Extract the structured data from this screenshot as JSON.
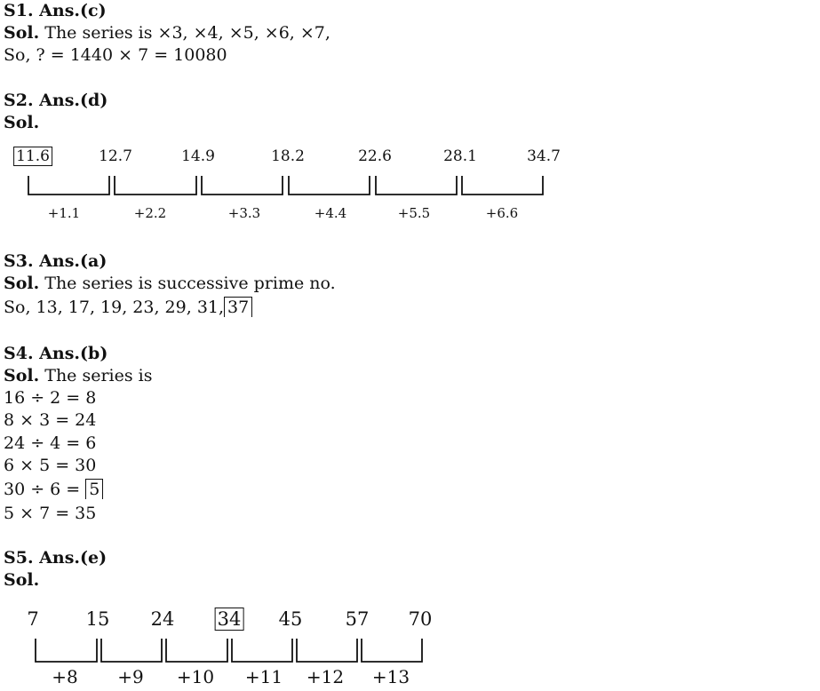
{
  "s1": {
    "heading": "S1. Ans.(c)",
    "sol_label": "Sol.",
    "sol_text": " The series is ×3, ×4, ×5, ×6, ×7,",
    "line2": "So, ? = 1440 × 7 = 10080"
  },
  "s2": {
    "heading": "S2. Ans.(d)",
    "sol_label": "Sol.",
    "numbers": [
      "11.6",
      "12.7",
      "14.9",
      "18.2",
      "22.6",
      "28.1",
      "34.7"
    ],
    "boxed_index": 0,
    "differences": [
      "+1.1",
      "+2.2",
      "+3.3",
      "+4.4",
      "+5.5",
      "+6.6"
    ]
  },
  "s3": {
    "heading": "S3. Ans.(a)",
    "sol_label": "Sol.",
    "sol_text": " The series is successive prime no.",
    "line2_prefix": "So, 13, 17, 19, 23, 29, 31,",
    "line2_answer": "37"
  },
  "s4": {
    "heading": "S4. Ans.(b)",
    "sol_label": "Sol.",
    "sol_text": " The series is",
    "lines": [
      "16 ÷ 2 = 8",
      "8 × 3 = 24",
      "24 ÷ 4 = 6",
      "6 × 5 = 30"
    ],
    "line5_prefix": "30 ÷ 6 =",
    "line5_answer": "5",
    "line6": "5 × 7 = 35"
  },
  "s5": {
    "heading": "S5. Ans.(e)",
    "sol_label": "Sol.",
    "numbers": [
      "7",
      "15",
      "24",
      "34",
      "45",
      "57",
      "70"
    ],
    "boxed_index": 3,
    "differences": [
      "+8",
      "+9",
      "+10",
      "+11",
      "+12",
      "+13"
    ]
  }
}
